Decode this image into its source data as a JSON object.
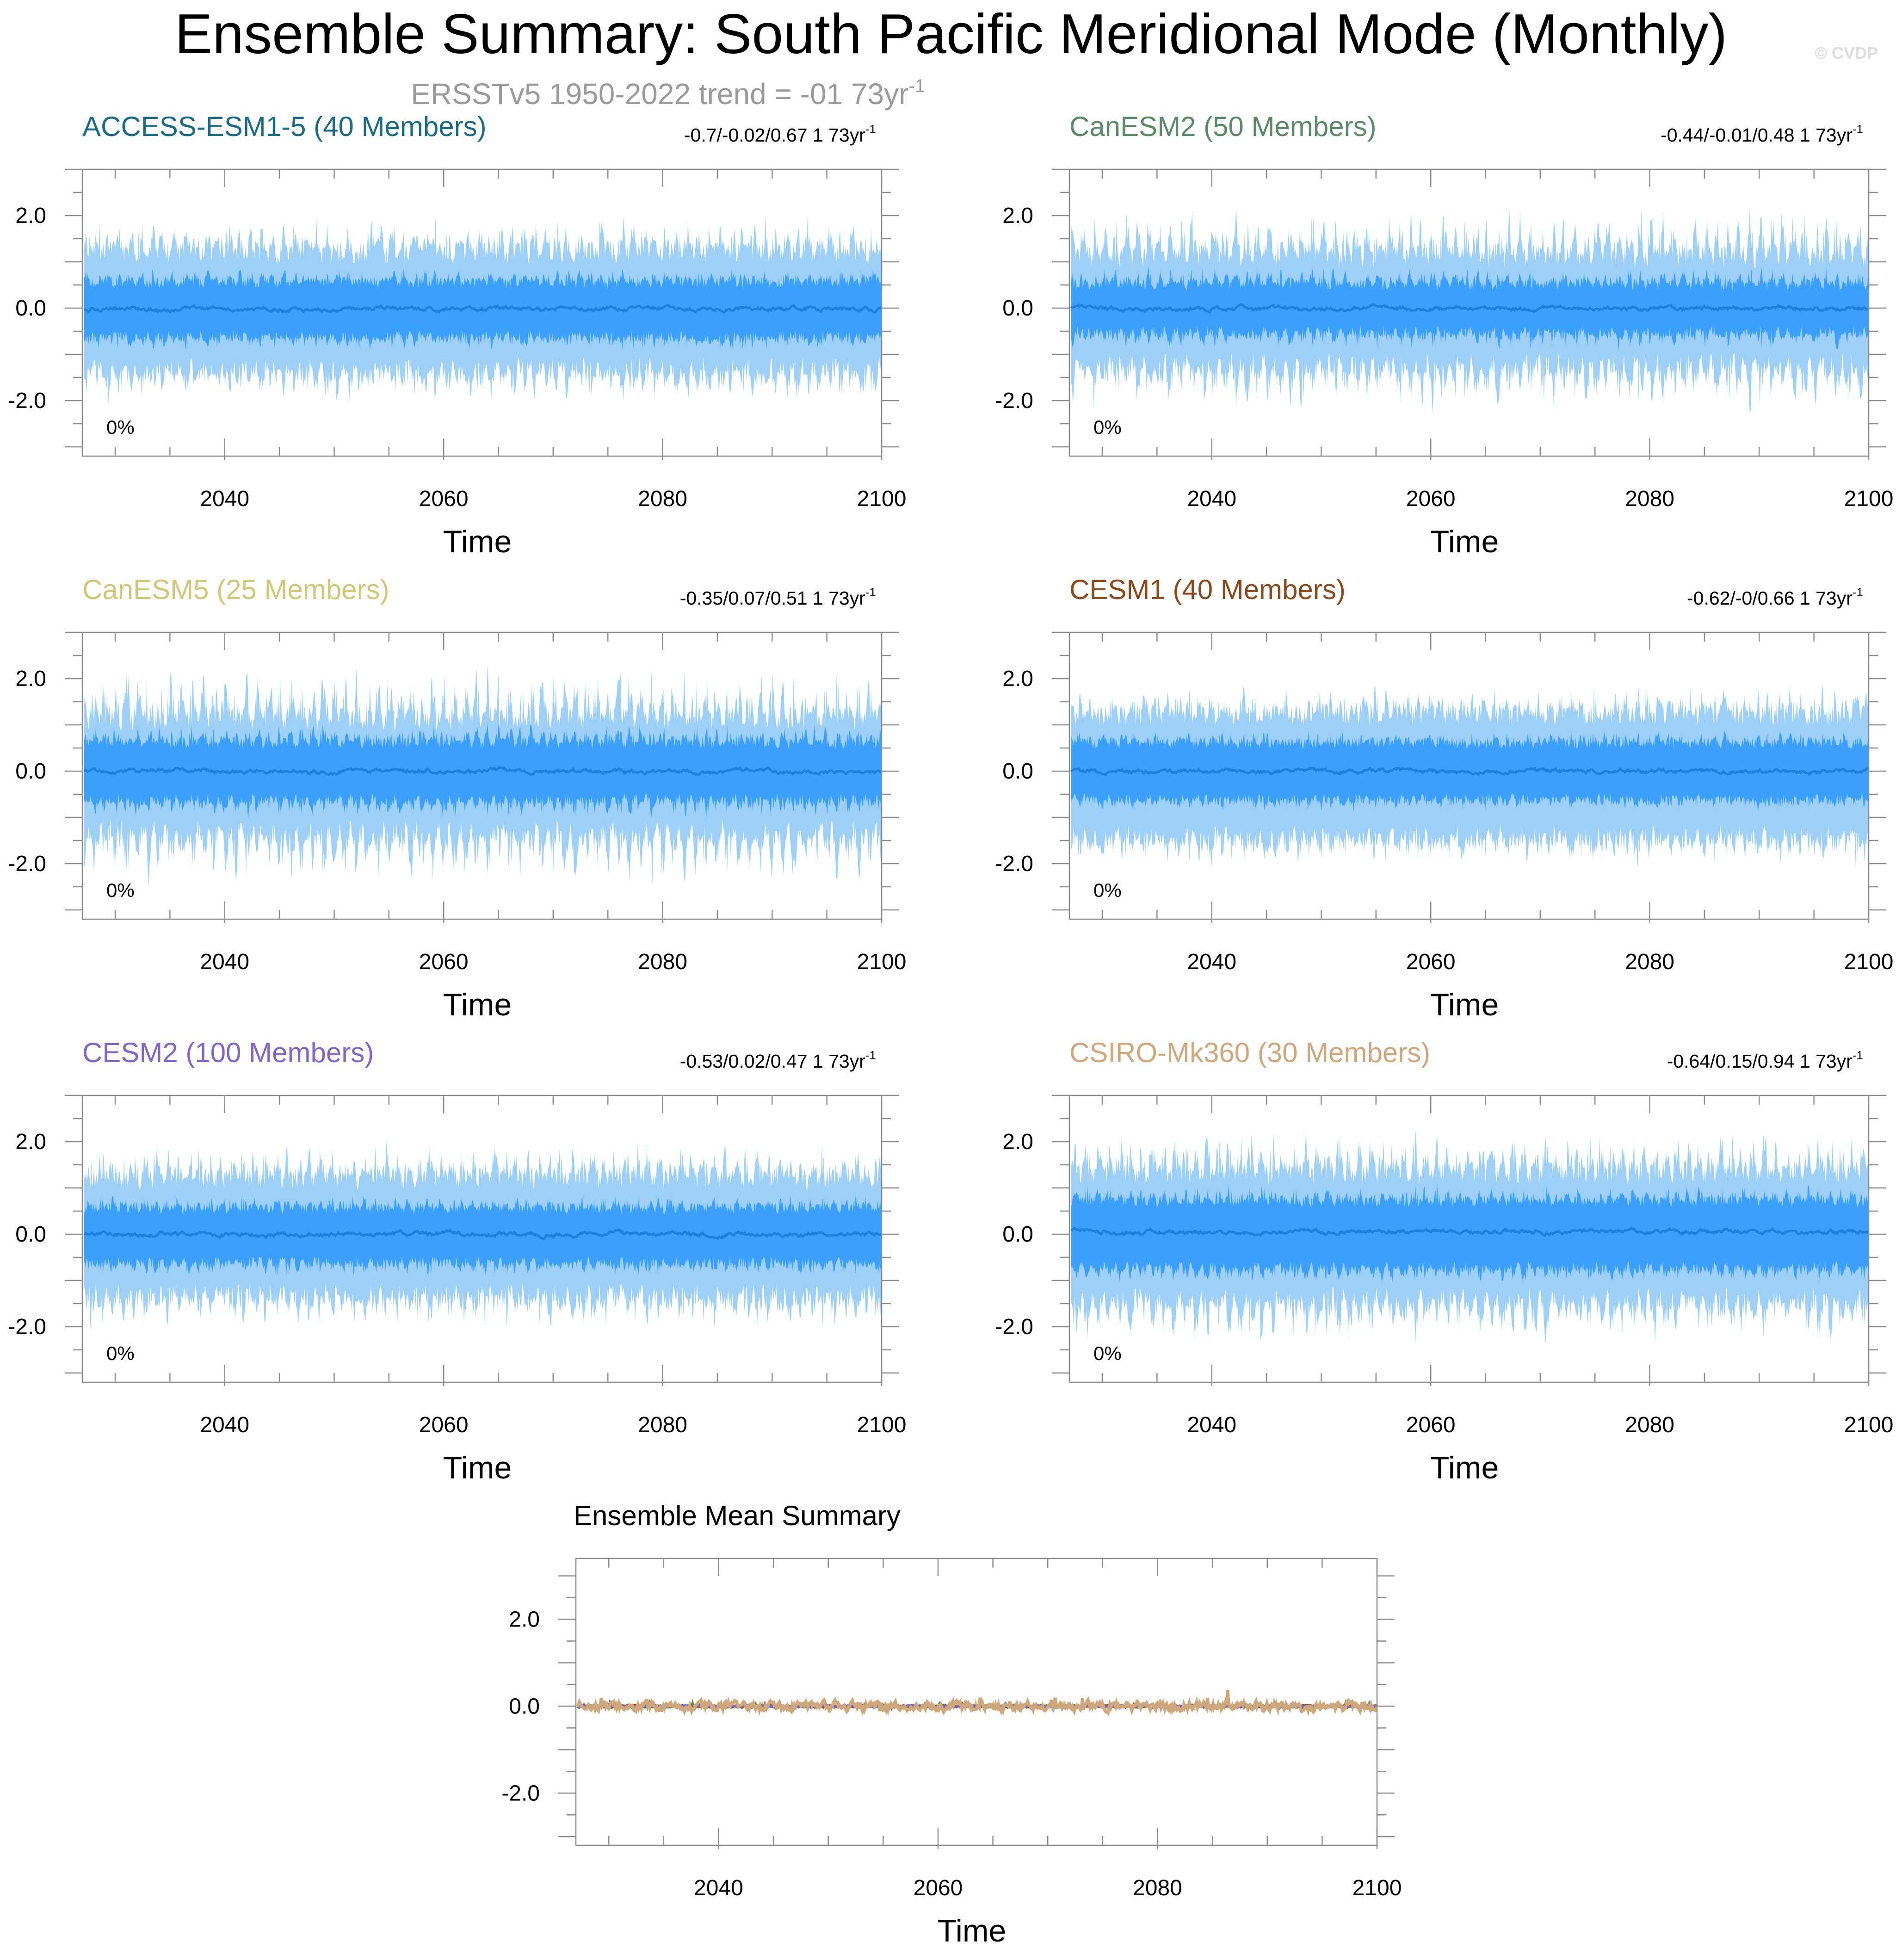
{
  "figure": {
    "title": "Ensemble Summary: South Pacific Meridional Mode (Monthly)",
    "subtitle": "ERSSTv5 1950-2022 trend = -01 73yr",
    "subtitle_superscript": "-1",
    "watermark": "© CVDP"
  },
  "colors": {
    "outer_band": "#9dcff7",
    "inner_band": "#3aa0fc",
    "mean_line": "#1f7fe0",
    "frame": "#888888"
  },
  "chart_data": [
    {
      "type": "area",
      "title": "ACCESS-ESM1-5 (40 Members)",
      "title_color": "#1b6b86",
      "stats": "-0.7/-0.02/0.67 1 73yr",
      "stats_superscript": "-1",
      "percent": "0%",
      "xlabel": "Time",
      "xlim": [
        2027,
        2100
      ],
      "ylim": [
        -3.2,
        3.0
      ],
      "xticks": [
        "2040",
        "2060",
        "2080",
        "2100"
      ],
      "yticks": [
        "2.0",
        "0.0",
        "-2.0"
      ],
      "series": [
        {
          "name": "outer range",
          "upper_mean": 1.2,
          "lower_mean": -1.3,
          "spike": 0.6
        },
        {
          "name": "inner range",
          "upper_mean": 0.55,
          "lower_mean": -0.6
        },
        {
          "name": "ensemble mean",
          "mean": -0.02
        }
      ]
    },
    {
      "type": "area",
      "title": "CanESM2 (50 Members)",
      "title_color": "#5c8a68",
      "stats": "-0.44/-0.01/0.48 1 73yr",
      "stats_superscript": "-1",
      "percent": "0%",
      "xlabel": "Time",
      "xlim": [
        2027,
        2100
      ],
      "ylim": [
        -3.2,
        3.0
      ],
      "xticks": [
        "2040",
        "2060",
        "2080",
        "2100"
      ],
      "yticks": [
        "2.0",
        "0.0",
        "-2.0"
      ],
      "series": [
        {
          "name": "outer range",
          "upper_mean": 1.1,
          "lower_mean": -1.2,
          "spike": 0.9
        },
        {
          "name": "inner range",
          "upper_mean": 0.5,
          "lower_mean": -0.5
        },
        {
          "name": "ensemble mean",
          "mean": -0.01
        }
      ]
    },
    {
      "type": "area",
      "title": "CanESM5 (25 Members)",
      "title_color": "#cfc77a",
      "stats": "-0.35/0.07/0.51 1 73yr",
      "stats_superscript": "-1",
      "percent": "0%",
      "xlabel": "Time",
      "xlim": [
        2027,
        2100
      ],
      "ylim": [
        -3.2,
        3.0
      ],
      "xticks": [
        "2040",
        "2060",
        "2080",
        "2100"
      ],
      "yticks": [
        "2.0",
        "0.0",
        "-2.0"
      ],
      "series": [
        {
          "name": "outer range",
          "upper_mean": 1.1,
          "lower_mean": -1.3,
          "spike": 1.0
        },
        {
          "name": "inner range",
          "upper_mean": 0.6,
          "lower_mean": -0.6
        },
        {
          "name": "ensemble mean",
          "mean": 0.0
        }
      ]
    },
    {
      "type": "area",
      "title": "CESM1 (40 Members)",
      "title_color": "#8a4a1e",
      "stats": "-0.62/-0/0.66 1 73yr",
      "stats_superscript": "-1",
      "percent": "0%",
      "xlabel": "Time",
      "xlim": [
        2027,
        2100
      ],
      "ylim": [
        -3.2,
        3.0
      ],
      "xticks": [
        "2040",
        "2060",
        "2080",
        "2100"
      ],
      "yticks": [
        "2.0",
        "0.0",
        "-2.0"
      ],
      "series": [
        {
          "name": "outer range",
          "upper_mean": 1.2,
          "lower_mean": -1.4,
          "spike": 0.5
        },
        {
          "name": "inner range",
          "upper_mean": 0.6,
          "lower_mean": -0.6
        },
        {
          "name": "ensemble mean",
          "mean": 0.0
        }
      ]
    },
    {
      "type": "area",
      "title": "CESM2 (100 Members)",
      "title_color": "#8066c8",
      "stats": "-0.53/0.02/0.47 1 73yr",
      "stats_superscript": "-1",
      "percent": "0%",
      "xlabel": "Time",
      "xlim": [
        2027,
        2100
      ],
      "ylim": [
        -3.2,
        3.0
      ],
      "xticks": [
        "2040",
        "2060",
        "2080",
        "2100"
      ],
      "yticks": [
        "2.0",
        "0.0",
        "-2.0"
      ],
      "series": [
        {
          "name": "outer range",
          "upper_mean": 1.2,
          "lower_mean": -1.3,
          "spike": 0.6
        },
        {
          "name": "inner range",
          "upper_mean": 0.55,
          "lower_mean": -0.6
        },
        {
          "name": "ensemble mean",
          "mean": 0.0
        }
      ]
    },
    {
      "type": "area",
      "title": "CSIRO-Mk360 (30 Members)",
      "title_color": "#cfa77c",
      "stats": "-0.64/0.15/0.94 1 73yr",
      "stats_superscript": "-1",
      "percent": "0%",
      "xlabel": "Time",
      "xlim": [
        2027,
        2100
      ],
      "ylim": [
        -3.2,
        3.0
      ],
      "xticks": [
        "2040",
        "2060",
        "2080",
        "2100"
      ],
      "yticks": [
        "2.0",
        "0.0",
        "-2.0"
      ],
      "series": [
        {
          "name": "outer range",
          "upper_mean": 1.3,
          "lower_mean": -1.4,
          "spike": 0.8
        },
        {
          "name": "inner range",
          "upper_mean": 0.7,
          "lower_mean": -0.7
        },
        {
          "name": "ensemble mean",
          "mean": 0.05
        }
      ]
    },
    {
      "type": "line",
      "title": "Ensemble Mean Summary",
      "title_color": "#000000",
      "xlabel": "Time",
      "xlim": [
        2027,
        2100
      ],
      "ylim": [
        -3.2,
        3.4
      ],
      "xticks": [
        "2040",
        "2060",
        "2080",
        "2100"
      ],
      "yticks": [
        "2.0",
        "0.0",
        "-2.0"
      ],
      "series": [
        {
          "name": "ACCESS-ESM1-5",
          "color": "#1b6b86",
          "amplitude": 0.05
        },
        {
          "name": "CanESM2",
          "color": "#5c8a68",
          "amplitude": 0.05
        },
        {
          "name": "CanESM5",
          "color": "#cfc77a",
          "amplitude": 0.06
        },
        {
          "name": "CESM1",
          "color": "#8a4a1e",
          "amplitude": 0.05
        },
        {
          "name": "CESM2",
          "color": "#8066c8",
          "amplitude": 0.04
        },
        {
          "name": "CSIRO-Mk360",
          "color": "#cfa77c",
          "amplitude": 0.2
        }
      ]
    }
  ]
}
